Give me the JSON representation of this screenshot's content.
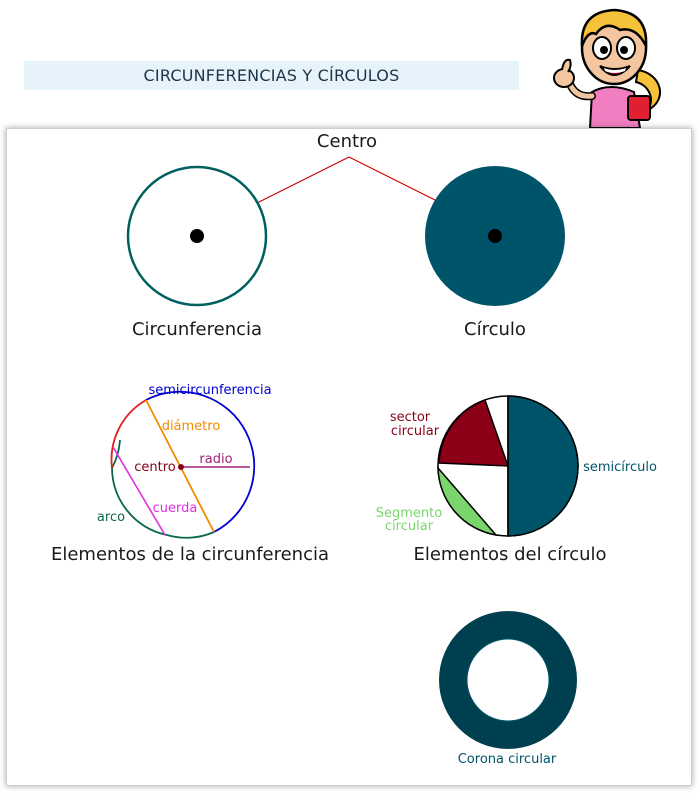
{
  "header": {
    "title": "CIRCUNFERENCIAS Y CÍRCULOS"
  },
  "mascot": {
    "icon": "girl-thumbs-up-icon"
  },
  "labels": {
    "centro_top": "Centro",
    "circunferencia": "Circunferencia",
    "circulo": "Círculo",
    "semicircunferencia": "semicircunferencia",
    "diametro": "diámetro",
    "radio": "radio",
    "centro": "centro",
    "cuerda": "cuerda",
    "arco": "arco",
    "elementos_circunferencia": "Elementos de la circunferencia",
    "sector_line1": "sector",
    "sector_line2": "circular",
    "semicirculo": "semicírculo",
    "segmento_line1": "Segmento",
    "segmento_line2": "circular",
    "elementos_circulo": "Elementos del círculo",
    "corona": "Corona circular"
  },
  "colors": {
    "teal_dark": "#00546a",
    "teal_outline": "#006060",
    "corona": "#003f4f",
    "semi_blue": "#0000d0",
    "diameter_orange": "#f08c00",
    "radio_purple": "#a0207a",
    "centro_maroon": "#8a0018",
    "cuerda_magenta": "#e030e0",
    "arco_green": "#0a6a48",
    "arc_red": "#e02020",
    "sector_red": "#8b0016",
    "segment_green": "#7ad66c",
    "arrow_red": "#cc0000"
  }
}
